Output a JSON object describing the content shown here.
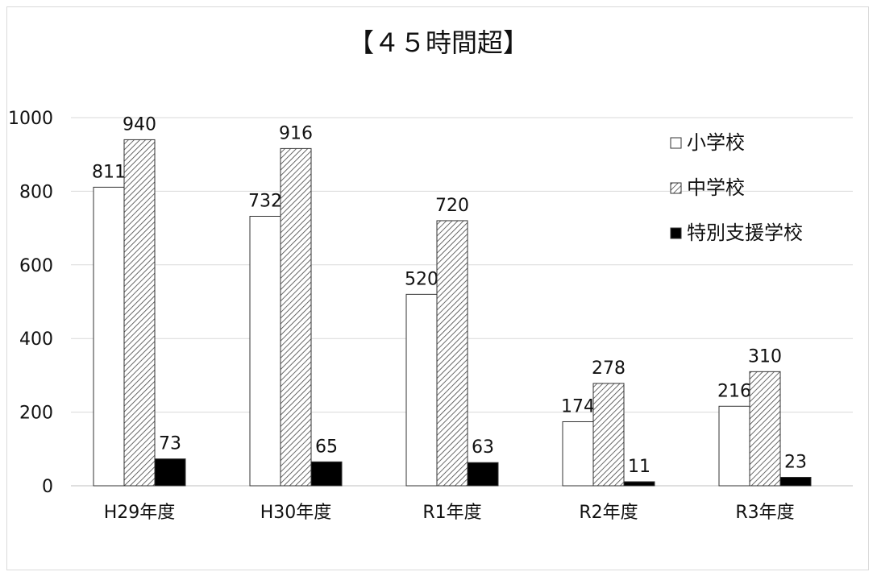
{
  "chart_data": {
    "type": "bar",
    "title": "【４５時間超】",
    "categories": [
      "H29年度",
      "H30年度",
      "R1年度",
      "R2年度",
      "R3年度"
    ],
    "series": [
      {
        "name": "小学校",
        "values": [
          811,
          732,
          520,
          174,
          216
        ],
        "style": "white",
        "color": "#ffffff"
      },
      {
        "name": "中学校",
        "values": [
          940,
          916,
          720,
          278,
          310
        ],
        "style": "hatched",
        "color": "#bfbfbf"
      },
      {
        "name": "特別支援学校",
        "values": [
          73,
          65,
          63,
          11,
          23
        ],
        "style": "black",
        "color": "#000000"
      }
    ],
    "yticks": [
      0,
      200,
      400,
      600,
      800,
      1000
    ],
    "ylim": [
      0,
      1000
    ],
    "grid": true,
    "legend_position": "top-right",
    "xlabel": "",
    "ylabel": ""
  }
}
